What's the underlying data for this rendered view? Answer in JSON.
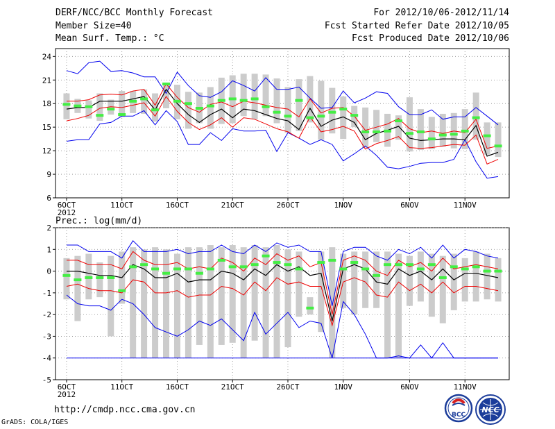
{
  "header": {
    "title": "DERF/NCC/BCC Monthly Forecast",
    "member_size": "Member Size=40",
    "variable": "Mean Surf. Temp.: °C",
    "period": "For 2012/10/06-2012/11/14",
    "refer_date": "Fcst Started Refer Date 2012/10/05",
    "produced_date": "Fcst Produced Date 2012/10/06"
  },
  "footer": {
    "url": "http://cmdp.ncc.cma.gov.cn",
    "credit": "GrADS: COLA/IGES",
    "logo_bcc": "BCC",
    "logo_ncc": "NCC"
  },
  "chart_data": [
    {
      "type": "ensemble-line-box",
      "name": "temperature",
      "ylabel": "Mean Surf. Temp.: °C",
      "ylim": [
        6,
        25
      ],
      "yticks": [
        6,
        9,
        12,
        15,
        18,
        21,
        24
      ],
      "days": 40,
      "x_tick_days": [
        1,
        6,
        11,
        16,
        21,
        26,
        32,
        37
      ],
      "x_tick_labels": [
        "6OCT",
        "11OCT",
        "16OCT",
        "21OCT",
        "26OCT",
        "1NOV",
        "6NOV",
        "11NOV"
      ],
      "x_year_label": "2012",
      "colors": {
        "max_min": "#0000ee",
        "spread": "#ee0000",
        "mean": "#000000",
        "median": "#44ee44",
        "box": "#cccccc"
      },
      "max": [
        22.2,
        21.8,
        23.2,
        23.4,
        22.1,
        22.2,
        21.9,
        21.4,
        21.4,
        19.3,
        22.0,
        20.3,
        19.0,
        18.8,
        19.5,
        20.9,
        20.3,
        19.6,
        21.3,
        19.8,
        19.8,
        20.1,
        18.7,
        17.4,
        17.5,
        19.6,
        18.1,
        18.7,
        19.5,
        19.3,
        17.6,
        16.6,
        16.6,
        17.2,
        16.0,
        16.3,
        16.3,
        17.5,
        16.4,
        15.3
      ],
      "spread_hi": [
        18.3,
        18.3,
        18.5,
        19.1,
        19.2,
        19.1,
        19.6,
        19.8,
        17.8,
        20.5,
        18.8,
        17.5,
        16.9,
        17.9,
        18.2,
        17.6,
        18.3,
        18.1,
        17.8,
        17.5,
        17.3,
        16.3,
        18.6,
        16.8,
        17.4,
        17.5,
        16.4,
        14.6,
        15.0,
        15.4,
        16.1,
        14.8,
        14.3,
        14.5,
        14.2,
        14.5,
        14.3,
        16.0,
        12.3,
        12.6
      ],
      "mean": [
        17.3,
        17.5,
        17.5,
        18.3,
        18.3,
        18.3,
        18.6,
        18.9,
        17.2,
        19.8,
        18.0,
        16.6,
        15.6,
        16.6,
        17.3,
        16.2,
        17.3,
        17.1,
        16.6,
        16.1,
        15.8,
        14.7,
        17.4,
        15.1,
        15.9,
        16.3,
        15.6,
        13.4,
        14.2,
        14.6,
        15.1,
        13.6,
        13.3,
        13.4,
        13.5,
        13.5,
        13.4,
        15.2,
        11.3,
        11.8
      ],
      "spread_lo": [
        15.8,
        16.1,
        16.5,
        17.4,
        17.6,
        17.5,
        17.8,
        18.1,
        16.4,
        18.9,
        17.0,
        15.6,
        14.7,
        15.3,
        16.2,
        15.0,
        16.2,
        16.0,
        15.4,
        14.8,
        14.4,
        13.6,
        16.3,
        14.4,
        14.7,
        15.1,
        14.5,
        12.2,
        12.9,
        13.3,
        13.8,
        12.4,
        12.3,
        12.4,
        12.6,
        12.8,
        12.7,
        14.0,
        10.3,
        10.9
      ],
      "min": [
        13.2,
        13.4,
        13.4,
        15.4,
        15.6,
        16.4,
        16.4,
        17.1,
        15.3,
        17.1,
        15.7,
        12.8,
        12.8,
        14.3,
        13.3,
        14.8,
        14.5,
        14.5,
        14.6,
        11.9,
        14.3,
        13.6,
        12.8,
        13.4,
        12.8,
        10.7,
        11.6,
        12.6,
        11.4,
        9.9,
        9.7,
        10.0,
        10.4,
        10.5,
        10.5,
        10.9,
        13.4,
        10.6,
        8.5,
        8.7
      ],
      "median": [
        17.9,
        17.7,
        17.6,
        16.5,
        17.3,
        16.6,
        18.3,
        18.6,
        17.2,
        20.5,
        18.3,
        18.0,
        17.4,
        17.7,
        18.4,
        18.6,
        18.4,
        18.6,
        17.6,
        16.9,
        16.4,
        18.4,
        16.2,
        16.4,
        16.9,
        17.3,
        16.5,
        14.4,
        14.4,
        14.5,
        15.8,
        14.2,
        14.4,
        13.5,
        14.0,
        14.1,
        14.5,
        16.2,
        13.9,
        12.6
      ],
      "box_hi": [
        19.3,
        18.6,
        18.4,
        19.3,
        18.5,
        19.6,
        19.6,
        19.8,
        19.3,
        20.4,
        20.4,
        19.5,
        19.4,
        20.1,
        21.3,
        21.6,
        21.8,
        21.8,
        21.7,
        21.2,
        20.1,
        21.1,
        21.5,
        20.9,
        20.0,
        18.9,
        17.7,
        17.5,
        17.2,
        16.7,
        16.5,
        18.8,
        17.3,
        16.3,
        16.7,
        16.8,
        17.3,
        19.4,
        15.6,
        15.6
      ],
      "box_lo": [
        16.0,
        16.8,
        16.1,
        15.8,
        16.6,
        16.3,
        16.8,
        16.7,
        15.7,
        17.4,
        16.0,
        14.8,
        15.5,
        14.8,
        15.4,
        15.5,
        16.4,
        16.0,
        16.4,
        15.5,
        14.3,
        14.5,
        15.6,
        13.4,
        14.2,
        13.5,
        15.0,
        12.4,
        13.1,
        12.5,
        13.4,
        11.9,
        12.1,
        12.2,
        12.5,
        12.3,
        12.2,
        13.4,
        11.5,
        11.2
      ]
    },
    {
      "type": "ensemble-line-box",
      "name": "precipitation",
      "ylabel": "Prec.: log(mm/d)",
      "ylim": [
        -5,
        2
      ],
      "yticks": [
        -5,
        -4,
        -3,
        -2,
        -1,
        0,
        1,
        2
      ],
      "days": 40,
      "x_tick_days": [
        1,
        6,
        11,
        16,
        21,
        26,
        32,
        37
      ],
      "x_tick_labels": [
        "6OCT",
        "11OCT",
        "16OCT",
        "21OCT",
        "26OCT",
        "1NOV",
        "6NOV",
        "11NOV"
      ],
      "x_year_label": "2012",
      "colors": {
        "max_min": "#0000ee",
        "spread": "#ee0000",
        "mean": "#000000",
        "median": "#44ee44",
        "box": "#cccccc"
      },
      "max": [
        1.2,
        1.2,
        0.9,
        0.9,
        0.9,
        0.6,
        1.4,
        0.9,
        0.9,
        0.9,
        1.0,
        0.8,
        0.9,
        0.9,
        1.2,
        0.9,
        0.8,
        1.2,
        0.9,
        1.3,
        1.1,
        1.2,
        0.9,
        0.9,
        -1.6,
        0.9,
        1.1,
        1.1,
        0.7,
        0.5,
        1.0,
        0.8,
        1.1,
        0.6,
        1.2,
        0.6,
        1.0,
        0.9,
        0.7,
        0.6
      ],
      "spread_hi": [
        0.5,
        0.5,
        0.3,
        0.3,
        0.3,
        0.1,
        0.9,
        0.5,
        0.3,
        0.3,
        0.4,
        0.1,
        0.2,
        0.1,
        0.6,
        0.4,
        0.0,
        0.6,
        0.3,
        0.8,
        0.5,
        0.7,
        0.2,
        0.4,
        -2.0,
        0.5,
        0.7,
        0.5,
        0.0,
        -0.2,
        0.5,
        0.2,
        0.4,
        0.0,
        0.6,
        0.1,
        0.2,
        0.3,
        0.2,
        0.1
      ],
      "mean": [
        -0.0,
        0.0,
        -0.1,
        -0.2,
        -0.2,
        -0.3,
        0.3,
        0.1,
        -0.3,
        -0.3,
        -0.1,
        -0.5,
        -0.4,
        -0.4,
        0.0,
        -0.1,
        -0.4,
        0.1,
        -0.2,
        0.3,
        0.0,
        0.2,
        -0.2,
        -0.1,
        -2.3,
        0.1,
        0.3,
        0.1,
        -0.5,
        -0.6,
        0.1,
        -0.2,
        0.0,
        -0.4,
        0.1,
        -0.4,
        -0.1,
        -0.1,
        -0.2,
        -0.3
      ],
      "spread_lo": [
        -0.7,
        -0.6,
        -0.8,
        -0.9,
        -0.9,
        -1.0,
        -0.4,
        -0.5,
        -1.0,
        -1.0,
        -0.9,
        -1.2,
        -1.1,
        -1.1,
        -0.7,
        -0.8,
        -1.1,
        -0.5,
        -0.9,
        -0.3,
        -0.6,
        -0.5,
        -0.7,
        -0.7,
        -2.5,
        -0.5,
        -0.3,
        -0.5,
        -1.1,
        -1.2,
        -0.5,
        -0.9,
        -0.6,
        -1.0,
        -0.5,
        -1.0,
        -0.7,
        -0.7,
        -0.8,
        -0.9
      ],
      "min": [
        -1.1,
        -1.5,
        -1.6,
        -1.6,
        -1.8,
        -1.3,
        -1.5,
        -2.0,
        -2.6,
        -2.8,
        -3.0,
        -2.7,
        -2.3,
        -2.5,
        -2.2,
        -2.7,
        -3.2,
        -1.9,
        -2.9,
        -2.4,
        -1.9,
        -2.6,
        -2.3,
        -2.4,
        -4.0,
        -1.4,
        -2.0,
        -2.9,
        -4.0,
        -4.0,
        -3.9,
        -4.0,
        -3.4,
        -4.0,
        -3.3,
        -4.0,
        -4.0,
        -4.0,
        -4.0,
        -4.0
      ],
      "median": [
        -0.2,
        -0.4,
        -0.3,
        -0.3,
        -0.3,
        -0.9,
        0.2,
        0.3,
        0.1,
        -0.1,
        0.1,
        0.1,
        -0.1,
        0.1,
        0.5,
        0.2,
        0.2,
        0.3,
        0.7,
        0.4,
        0.3,
        0.1,
        -1.7,
        0.4,
        0.5,
        0.1,
        0.4,
        0.1,
        -0.2,
        0.3,
        0.3,
        0.3,
        0.1,
        0.3,
        -0.3,
        0.2,
        0.1,
        0.2,
        0.0,
        0.0
      ],
      "box_hi": [
        0.6,
        0.7,
        0.8,
        0.4,
        0.7,
        0.9,
        1.1,
        1.0,
        1.1,
        1.0,
        0.8,
        1.1,
        1.1,
        1.2,
        1.1,
        1.2,
        1.1,
        1.2,
        1.1,
        1.2,
        1.0,
        0.9,
        -1.2,
        0.9,
        1.1,
        0.8,
        0.9,
        0.9,
        0.9,
        0.9,
        0.8,
        0.7,
        0.9,
        0.8,
        0.7,
        0.8,
        0.6,
        0.9,
        0.8,
        0.6
      ],
      "box_lo": [
        -1.3,
        -2.3,
        -1.3,
        -1.2,
        -3.0,
        -1.5,
        -4.0,
        -4.0,
        -4.0,
        -4.0,
        -4.0,
        -4.0,
        -3.4,
        -4.0,
        -3.4,
        -3.3,
        -4.0,
        -3.2,
        -4.0,
        -4.0,
        -3.5,
        -2.1,
        -2.0,
        -2.8,
        -4.0,
        -1.7,
        -2.0,
        -1.7,
        -1.7,
        -4.0,
        -4.0,
        -1.6,
        -1.4,
        -2.1,
        -2.4,
        -1.8,
        -1.4,
        -1.4,
        -1.3,
        -1.4
      ]
    }
  ]
}
